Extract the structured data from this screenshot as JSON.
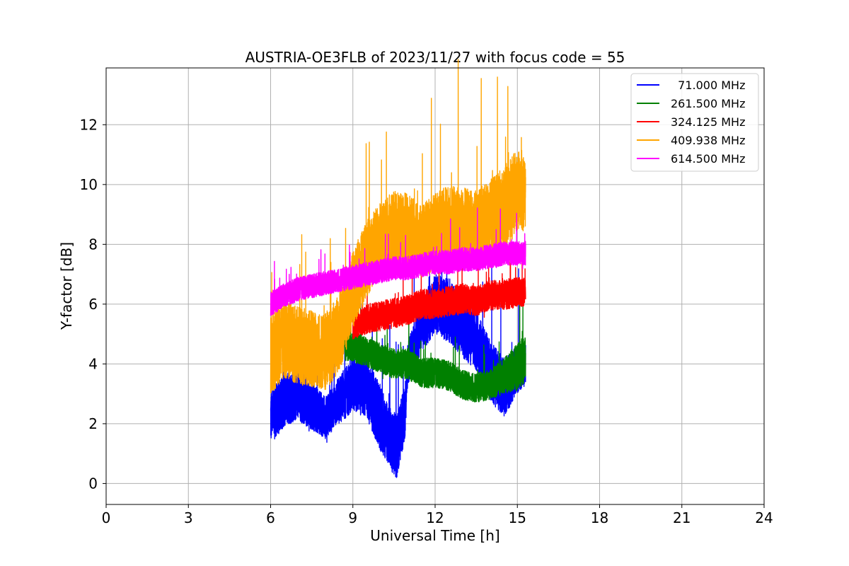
{
  "chart_data": {
    "type": "line",
    "title": "AUSTRIA-OE3FLB of 2023/11/27 with focus code = 55",
    "xlabel": "Universal Time [h]",
    "ylabel": "Y-factor [dB]",
    "xlim": [
      0,
      24
    ],
    "ylim": [
      -0.7,
      13.9
    ],
    "xticks": [
      0,
      3,
      6,
      9,
      12,
      15,
      18,
      21,
      24
    ],
    "yticks": [
      0,
      2,
      4,
      6,
      8,
      10,
      12
    ],
    "grid": true,
    "legend_position": "top-right",
    "series": [
      {
        "name": "  71.000 MHz",
        "color": "#0000ff",
        "x": [
          6.0,
          6.5,
          7.0,
          7.5,
          8.0,
          8.5,
          9.0,
          9.5,
          10.0,
          10.3,
          10.6,
          10.9,
          11.0,
          11.5,
          12.0,
          12.5,
          13.0,
          13.5,
          14.0,
          14.5,
          15.0,
          15.3
        ],
        "y": [
          2.2,
          2.8,
          3.0,
          2.6,
          2.2,
          2.8,
          3.3,
          3.2,
          2.2,
          1.6,
          1.2,
          2.4,
          4.0,
          5.3,
          6.0,
          5.8,
          5.2,
          4.8,
          3.8,
          3.2,
          3.8,
          4.0
        ],
        "spread": [
          0.9,
          0.9,
          0.9,
          0.8,
          0.7,
          0.8,
          0.9,
          1.0,
          1.1,
          1.0,
          1.1,
          0.9,
          0.7,
          0.9,
          1.0,
          1.1,
          1.0,
          1.0,
          1.0,
          1.0,
          0.8,
          0.7
        ]
      },
      {
        "name": "261.500 MHz",
        "color": "#008000",
        "x": [
          8.7,
          9.0,
          9.5,
          10.0,
          10.5,
          11.0,
          11.5,
          12.0,
          12.5,
          13.0,
          13.5,
          14.0,
          14.5,
          15.0,
          15.3
        ],
        "y": [
          4.6,
          4.6,
          4.4,
          4.2,
          4.0,
          4.0,
          3.7,
          3.7,
          3.6,
          3.3,
          3.2,
          3.3,
          3.6,
          3.9,
          4.2
        ],
        "spread": [
          0.5,
          0.5,
          0.5,
          0.5,
          0.5,
          0.5,
          0.5,
          0.5,
          0.5,
          0.5,
          0.5,
          0.5,
          0.6,
          0.8,
          0.8
        ]
      },
      {
        "name": "324.125 MHz",
        "color": "#ff0000",
        "x": [
          9.0,
          9.5,
          10.0,
          10.5,
          11.0,
          11.5,
          12.0,
          12.5,
          13.0,
          13.5,
          14.0,
          14.5,
          15.0,
          15.3
        ],
        "y": [
          5.2,
          5.5,
          5.6,
          5.7,
          5.8,
          6.0,
          6.0,
          6.1,
          6.2,
          6.1,
          6.3,
          6.3,
          6.4,
          6.4
        ],
        "spread": [
          0.4,
          0.5,
          0.5,
          0.5,
          0.5,
          0.5,
          0.5,
          0.5,
          0.5,
          0.5,
          0.5,
          0.5,
          0.5,
          0.5
        ]
      },
      {
        "name": "409.938 MHz",
        "color": "#ffa500",
        "x": [
          6.0,
          6.5,
          7.0,
          7.5,
          8.0,
          8.5,
          9.0,
          9.5,
          10.0,
          10.5,
          11.0,
          11.5,
          12.0,
          12.5,
          13.0,
          13.5,
          14.0,
          14.5,
          15.0,
          15.3
        ],
        "y": [
          4.3,
          4.8,
          4.6,
          4.5,
          4.4,
          5.0,
          6.5,
          7.5,
          8.2,
          8.5,
          8.4,
          8.1,
          8.4,
          8.7,
          8.6,
          8.5,
          8.9,
          9.2,
          9.8,
          9.6
        ],
        "spread": [
          1.3,
          1.3,
          1.3,
          1.3,
          1.3,
          1.3,
          1.3,
          1.3,
          1.2,
          1.3,
          1.3,
          1.2,
          1.3,
          1.3,
          1.3,
          1.3,
          1.3,
          1.4,
          1.4,
          1.2
        ]
      },
      {
        "name": "614.500 MHz",
        "color": "#ff00ff",
        "x": [
          6.0,
          6.5,
          7.0,
          7.5,
          8.0,
          8.5,
          9.0,
          9.5,
          10.0,
          10.5,
          11.0,
          11.5,
          12.0,
          12.5,
          13.0,
          13.5,
          14.0,
          14.5,
          15.0,
          15.3
        ],
        "y": [
          6.0,
          6.3,
          6.5,
          6.6,
          6.7,
          6.8,
          6.9,
          7.0,
          7.1,
          7.2,
          7.2,
          7.3,
          7.4,
          7.4,
          7.5,
          7.5,
          7.6,
          7.7,
          7.7,
          7.7
        ],
        "spread": [
          0.4,
          0.4,
          0.4,
          0.4,
          0.4,
          0.4,
          0.4,
          0.4,
          0.4,
          0.4,
          0.4,
          0.4,
          0.4,
          0.4,
          0.4,
          0.4,
          0.4,
          0.4,
          0.4,
          0.4
        ]
      }
    ]
  }
}
